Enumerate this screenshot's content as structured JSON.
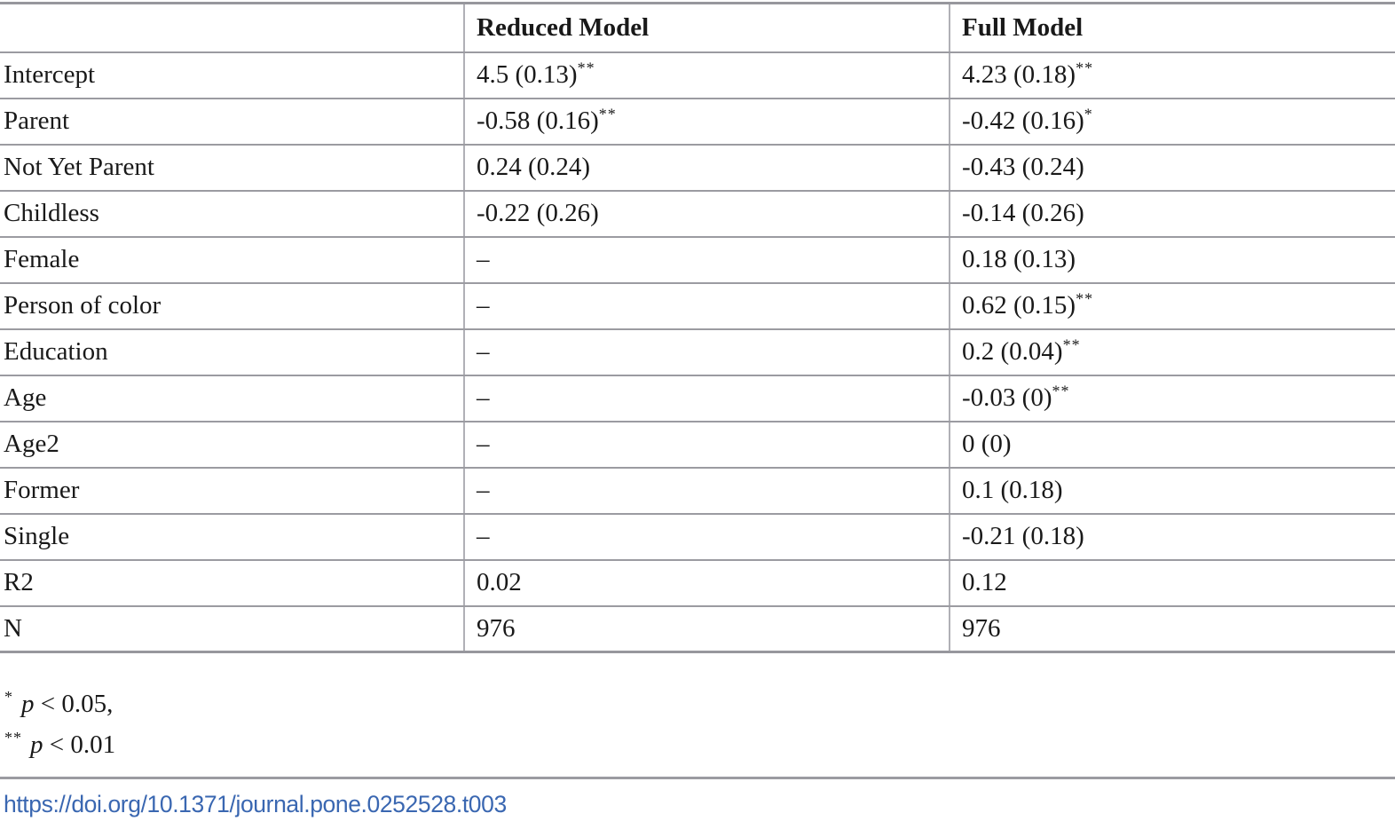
{
  "table": {
    "header": {
      "col1": "",
      "col2": "Reduced Model",
      "col3": "Full Model"
    },
    "rows": [
      {
        "label": "Intercept",
        "reduced": "4.5 (0.13)",
        "reduced_sup": "**",
        "full": "4.23 (0.18)",
        "full_sup": "**"
      },
      {
        "label": "Parent",
        "reduced": "-0.58 (0.16)",
        "reduced_sup": "**",
        "full": "-0.42 (0.16)",
        "full_sup": "*"
      },
      {
        "label": "Not Yet Parent",
        "reduced": "0.24 (0.24)",
        "reduced_sup": "",
        "full": "-0.43 (0.24)",
        "full_sup": ""
      },
      {
        "label": "Childless",
        "reduced": "-0.22 (0.26)",
        "reduced_sup": "",
        "full": "-0.14 (0.26)",
        "full_sup": ""
      },
      {
        "label": "Female",
        "reduced": "–",
        "reduced_sup": "",
        "full": "0.18 (0.13)",
        "full_sup": ""
      },
      {
        "label": "Person of color",
        "reduced": "–",
        "reduced_sup": "",
        "full": "0.62 (0.15)",
        "full_sup": "**"
      },
      {
        "label": "Education",
        "reduced": "–",
        "reduced_sup": "",
        "full": "0.2 (0.04)",
        "full_sup": "**"
      },
      {
        "label": "Age",
        "reduced": "–",
        "reduced_sup": "",
        "full": "-0.03 (0)",
        "full_sup": "**"
      },
      {
        "label": "Age2",
        "reduced": "–",
        "reduced_sup": "",
        "full": "0 (0)",
        "full_sup": ""
      },
      {
        "label": "Former",
        "reduced": "–",
        "reduced_sup": "",
        "full": "0.1 (0.18)",
        "full_sup": ""
      },
      {
        "label": "Single",
        "reduced": "–",
        "reduced_sup": "",
        "full": "-0.21 (0.18)",
        "full_sup": ""
      },
      {
        "label": "R2",
        "reduced": "0.02",
        "reduced_sup": "",
        "full": "0.12",
        "full_sup": ""
      },
      {
        "label": "N",
        "reduced": "976",
        "reduced_sup": "",
        "full": "976",
        "full_sup": ""
      }
    ]
  },
  "footnotes": [
    {
      "marker": "*",
      "symbol": "p",
      "text": " < 0.05,"
    },
    {
      "marker": "**",
      "symbol": "p",
      "text": " < 0.01"
    }
  ],
  "doi_link": {
    "text": "https://doi.org/10.1371/journal.pone.0252528.t003"
  },
  "colors": {
    "link_blue": "#3a67b1",
    "grid_gray": "#9b9ba1"
  }
}
